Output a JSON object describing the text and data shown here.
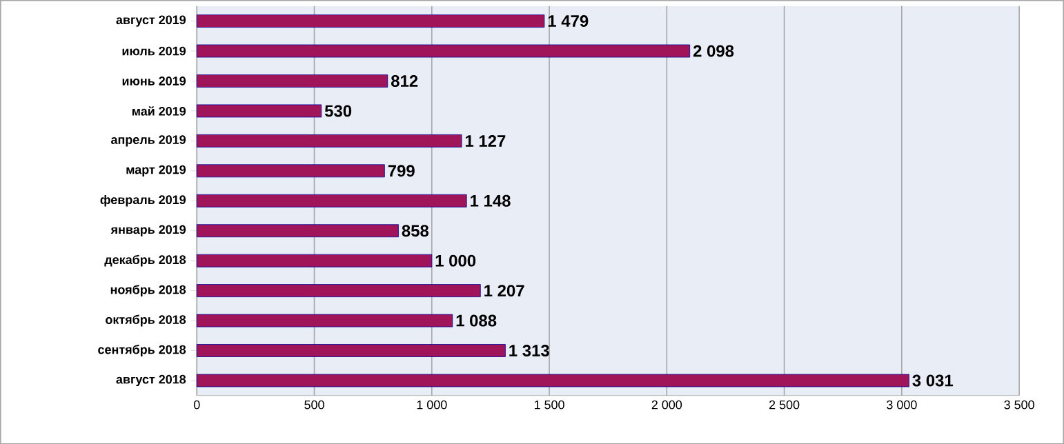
{
  "chart_data": {
    "type": "bar",
    "orientation": "horizontal",
    "categories": [
      "август 2019",
      "июль 2019",
      "июнь 2019",
      "май 2019",
      "апрель 2019",
      "март 2019",
      "февраль 2019",
      "январь 2019",
      "декабрь 2018",
      "ноябрь 2018",
      "октябрь 2018",
      "сентябрь 2018",
      "август 2018"
    ],
    "values": [
      1479,
      2098,
      812,
      530,
      1127,
      799,
      1148,
      858,
      1000,
      1207,
      1088,
      1313,
      3031
    ],
    "value_labels": [
      "1 479",
      "2 098",
      "812",
      "530",
      "1 127",
      "799",
      "1 148",
      "858",
      "1 000",
      "1 207",
      "1 088",
      "1 313",
      "3 031"
    ],
    "color": "#a0145a",
    "xlim": [
      0,
      3500
    ],
    "xticks": [
      0,
      500,
      {
        "value": 1000,
        "label": "1 000"
      },
      {
        "value": 1500,
        "label": "1 500"
      },
      {
        "value": 2000,
        "label": "2 000"
      },
      {
        "value": 2500,
        "label": "2 500"
      },
      {
        "value": 3000,
        "label": "3 000"
      },
      {
        "value": 3500,
        "label": "3 500"
      }
    ],
    "grid": "x"
  }
}
